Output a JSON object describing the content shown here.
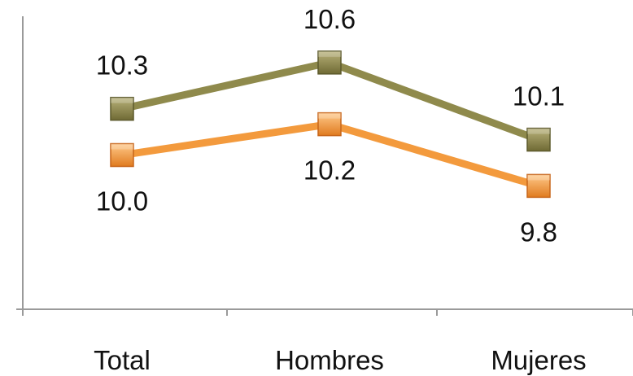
{
  "chart_data": {
    "type": "line",
    "categories": [
      "Total",
      "Hombres",
      "Mujeres"
    ],
    "series": [
      {
        "values": [
          10.3,
          10.6,
          10.1
        ],
        "value_labels": [
          "10.3",
          "10.6",
          "10.1"
        ],
        "color": "#8f8a4c",
        "label_position": "above"
      },
      {
        "values": [
          10.0,
          10.2,
          9.8
        ],
        "value_labels": [
          "10.0",
          "10.2",
          "9.8"
        ],
        "color": "#f39a3d",
        "label_position": "below"
      }
    ],
    "ylim": [
      9.0,
      10.9
    ],
    "marker": "square",
    "grid": false,
    "legend": "none"
  }
}
